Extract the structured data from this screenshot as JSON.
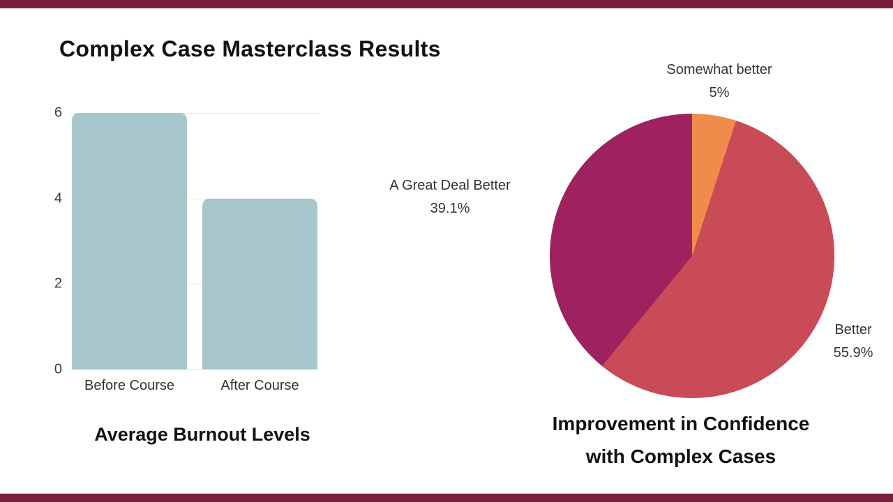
{
  "page": {
    "title": "Complex Case Masterclass Results",
    "accent_bar_color": "#771f3d",
    "background_color": "#ffffff"
  },
  "chart_data": [
    {
      "type": "bar",
      "title": "Average Burnout Levels",
      "categories": [
        "Before Course",
        "After Course"
      ],
      "values": [
        6,
        4
      ],
      "xlabel": "",
      "ylabel": "",
      "ylim": [
        0,
        6
      ],
      "yticks": [
        0,
        2,
        4,
        6
      ],
      "grid": true,
      "bar_color": "#a7c6cc"
    },
    {
      "type": "pie",
      "title": "Improvement in Confidence with Complex Cases",
      "title_lines": [
        "Improvement in Confidence",
        "with Complex Cases"
      ],
      "legend_position": "labels-outside",
      "slices": [
        {
          "label": "Somewhat better",
          "value": 5,
          "pct_label": "5%",
          "color": "#f08c4b"
        },
        {
          "label": "Better",
          "value": 55.9,
          "pct_label": "55.9%",
          "color": "#c84b57"
        },
        {
          "label": "A Great Deal Better",
          "value": 39.1,
          "pct_label": "39.1%",
          "color": "#9e2160"
        }
      ]
    }
  ]
}
